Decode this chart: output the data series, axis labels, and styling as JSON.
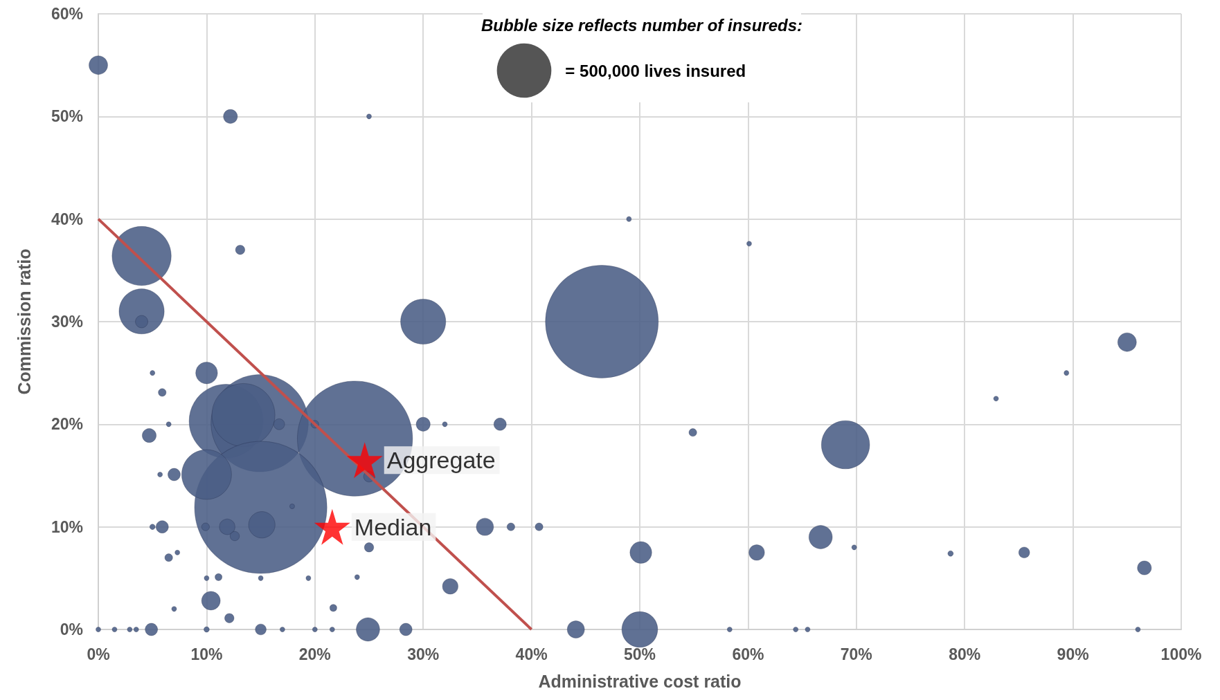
{
  "chart_data": {
    "type": "bubble",
    "xlabel": "Administrative cost ratio",
    "ylabel": "Commission ratio",
    "legend_title": "Bubble size reflects number of insureds:",
    "size_legend": [
      {
        "value": 500000,
        "label": "= 500,000 lives insured"
      }
    ],
    "xlim": [
      0,
      100
    ],
    "ylim": [
      0,
      60
    ],
    "grid": true,
    "legend": false,
    "xticks": [
      {
        "value": 0,
        "label": "0%"
      },
      {
        "value": 10,
        "label": "10%"
      },
      {
        "value": 20,
        "label": "20%"
      },
      {
        "value": 30,
        "label": "30%"
      },
      {
        "value": 40,
        "label": "40%"
      },
      {
        "value": 50,
        "label": "50%"
      },
      {
        "value": 60,
        "label": "60%"
      },
      {
        "value": 70,
        "label": "70%"
      },
      {
        "value": 80,
        "label": "80%"
      },
      {
        "value": 90,
        "label": "90%"
      },
      {
        "value": 100,
        "label": "100%"
      }
    ],
    "yticks": [
      {
        "value": 0,
        "label": "0%"
      },
      {
        "value": 10,
        "label": "10%"
      },
      {
        "value": 20,
        "label": "20%"
      },
      {
        "value": 30,
        "label": "30%"
      },
      {
        "value": 40,
        "label": "40%"
      },
      {
        "value": 50,
        "label": "50%"
      },
      {
        "value": 60,
        "label": "60%"
      }
    ],
    "series": [
      {
        "color": "#4a5d85",
        "x": [
          0,
          12.2,
          4.0,
          13.1,
          4.0,
          4.0,
          30,
          46.5,
          95,
          10,
          5,
          5.9,
          11.8,
          14.9,
          13.4,
          23.7,
          15.0,
          10,
          15.1,
          11.9,
          12.6,
          9.9,
          5.9,
          5,
          7,
          5.7,
          4.7,
          6.5,
          16.7,
          20,
          30,
          32,
          37.1,
          25,
          17.9,
          25,
          6.5,
          7.3,
          7,
          10.4,
          11.1,
          12.1,
          15,
          10,
          21.7,
          23.9,
          19.4,
          32.5,
          35.7,
          38.1,
          40.7,
          50.1,
          50,
          44.1,
          24.9,
          28.4,
          15,
          4.9,
          0,
          1.5,
          2.9,
          3.5,
          10,
          17,
          20,
          21.6,
          58.3,
          64.4,
          65.5,
          96,
          66.7,
          60.8,
          69,
          54.9,
          49,
          60.1,
          69.8,
          78.7,
          85.5,
          96.6,
          82.9,
          89.4,
          25
        ],
        "values": [
          55,
          50,
          36.4,
          37,
          31,
          30,
          30,
          30,
          28,
          25,
          25,
          23.1,
          20.3,
          20.1,
          20.9,
          18.6,
          11.9,
          15.1,
          10.2,
          10,
          9.1,
          10,
          10,
          10,
          15.1,
          15.1,
          18.9,
          20,
          20,
          20,
          20,
          20,
          20,
          14.9,
          12,
          8,
          7,
          7.5,
          2,
          2.8,
          5.1,
          1.1,
          5,
          5,
          2.1,
          5.1,
          5,
          4.2,
          10,
          10,
          10,
          7.5,
          0,
          0,
          0,
          0,
          0,
          0,
          0,
          0,
          0,
          0,
          0,
          0,
          0,
          0,
          0,
          0,
          0,
          0,
          9,
          7.5,
          18,
          19.2,
          40,
          37.6,
          8,
          7.4,
          7.5,
          6,
          22.5,
          25,
          50
        ],
        "sizes": [
          58800,
          33000,
          589000,
          14700,
          343000,
          26000,
          343000,
          2145000,
          58800,
          80000,
          4000,
          10200,
          921000,
          1594000,
          670000,
          2235000,
          2949000,
          418000,
          118000,
          40800,
          14700,
          10200,
          26000,
          5000,
          26000,
          4000,
          33000,
          4000,
          20000,
          10000,
          33000,
          4000,
          26000,
          20000,
          4000,
          14700,
          10200,
          4000,
          4000,
          58800,
          8300,
          14700,
          4000,
          4000,
          8300,
          4000,
          4000,
          40800,
          50000,
          10200,
          10200,
          80000,
          216000,
          50000,
          92000,
          26000,
          20000,
          26000,
          4000,
          4000,
          4000,
          4000,
          5000,
          4000,
          4000,
          4000,
          4000,
          4000,
          4000,
          4000,
          92000,
          40800,
          392000,
          10200,
          4000,
          4000,
          4000,
          5000,
          20000,
          33000,
          4000,
          4000,
          4000
        ]
      },
      {
        "type": "line",
        "color": "#c0504d",
        "x": [
          0,
          40
        ],
        "values": [
          40,
          0
        ]
      },
      {
        "type": "scatter",
        "name": "Aggregate",
        "marker": "star",
        "color": "#ff0000",
        "x": [
          24.6
        ],
        "values": [
          16.5
        ]
      },
      {
        "type": "scatter",
        "name": "Median",
        "marker": "star",
        "color": "#ff0000",
        "x": [
          21.6
        ],
        "values": [
          10
        ]
      }
    ]
  }
}
